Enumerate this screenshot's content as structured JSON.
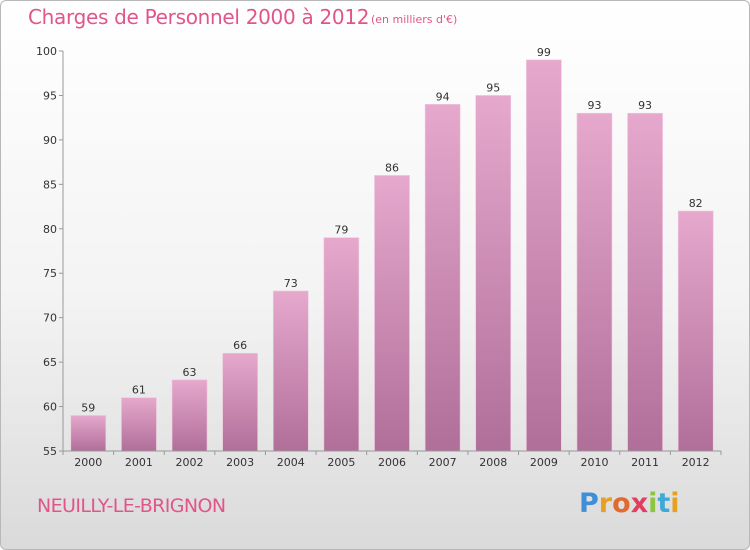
{
  "header": {
    "title": "Charges de Personnel 2000 à 2012",
    "subtitle": "(en milliers d'€)"
  },
  "footer": {
    "commune": "NEUILLY-LE-BRIGNON",
    "logo_letters": [
      {
        "char": "P",
        "color": "#3f8fd8"
      },
      {
        "char": "r",
        "color": "#e8a020"
      },
      {
        "char": "o",
        "color": "#e06a30"
      },
      {
        "char": "x",
        "color": "#e04060"
      },
      {
        "char": "i",
        "color": "#8cc63f"
      },
      {
        "char": "t",
        "color": "#3fa9d8"
      },
      {
        "char": "i",
        "color": "#e8a020"
      }
    ]
  },
  "colors": {
    "bar_top": "#e6a8cd",
    "bar_bottom": "#b06f99",
    "text": "#333333",
    "axis": "#999999",
    "grid": "#dddddd"
  },
  "chart_data": {
    "type": "bar",
    "title": "Charges de Personnel 2000 à 2012",
    "categories": [
      "2000",
      "2001",
      "2002",
      "2003",
      "2004",
      "2005",
      "2006",
      "2007",
      "2008",
      "2009",
      "2010",
      "2011",
      "2012"
    ],
    "values": [
      59,
      61,
      63,
      66,
      73,
      79,
      86,
      94,
      95,
      99,
      93,
      93,
      82
    ],
    "data_labels": [
      "59",
      "61",
      "63",
      "66",
      "73",
      "79",
      "86",
      "94",
      "95",
      "99",
      "93",
      "93",
      "82"
    ],
    "ylim": [
      55,
      100
    ],
    "yticks": [
      55,
      60,
      65,
      70,
      75,
      80,
      85,
      90,
      95,
      100
    ],
    "ytick_labels": [
      "55",
      "60",
      "65",
      "70",
      "75",
      "80",
      "85",
      "90",
      "95",
      "100"
    ],
    "xlabel": "",
    "ylabel": "",
    "grid": false
  }
}
